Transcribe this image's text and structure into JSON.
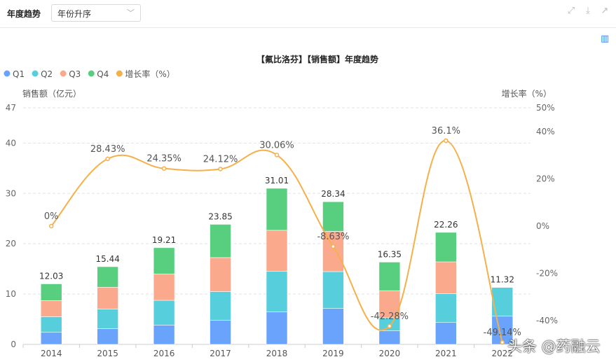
{
  "toolbar": {
    "label": "年度趋势",
    "sort_select": "年份升序",
    "icons": [
      "fullscreen-icon",
      "download-icon",
      "export-icon"
    ]
  },
  "chart_type_icon": "bar-chart-icon",
  "watermark": "头条 @药融云",
  "chart_data": {
    "type": "bar",
    "title": "【氟比洛芬】【销售额】年度趋势",
    "categories": [
      "2014",
      "2015",
      "2016",
      "2017",
      "2018",
      "2019",
      "2020",
      "2021",
      "2022"
    ],
    "ylabel": "销售额（亿元）",
    "y2label": "增长率（%）",
    "ylim": [
      0,
      47
    ],
    "yticks": [
      "0",
      "10",
      "20",
      "30",
      "40",
      "47"
    ],
    "y2lim": [
      -50,
      50
    ],
    "y2ticks": [
      "-40%",
      "-20%",
      "0%",
      "20%",
      "40%",
      "50%"
    ],
    "legend_position": "top-left",
    "grid": true,
    "series": [
      {
        "name": "Q1",
        "type": "bar",
        "stack": "total",
        "color": "#6aa3fb",
        "values": [
          2.4,
          3.15,
          3.85,
          4.77,
          6.44,
          7.14,
          2.69,
          4.35,
          5.6
        ]
      },
      {
        "name": "Q2",
        "type": "bar",
        "stack": "total",
        "color": "#56cedc",
        "values": [
          3.1,
          3.85,
          4.91,
          5.73,
          8.06,
          7.32,
          2.59,
          5.75,
          5.72
        ]
      },
      {
        "name": "Q3",
        "type": "bar",
        "stack": "total",
        "color": "#fba98d",
        "values": [
          3.2,
          4.36,
          5.24,
          6.75,
          8.17,
          8.0,
          5.39,
          6.3,
          0
        ]
      },
      {
        "name": "Q4",
        "type": "bar",
        "stack": "total",
        "color": "#57cf7f",
        "values": [
          3.33,
          4.08,
          5.21,
          6.6,
          8.34,
          5.88,
          5.68,
          5.86,
          0
        ]
      },
      {
        "name": "增长率（%）",
        "type": "line",
        "axis": "right",
        "color": "#f5b04b",
        "values": [
          0,
          28.43,
          24.35,
          24.12,
          30.06,
          -8.63,
          -42.28,
          36.1,
          -49.14
        ]
      }
    ],
    "totals": [
      "12.03",
      "15.44",
      "19.21",
      "23.85",
      "31.01",
      "28.34",
      "16.35",
      "22.26",
      "11.32"
    ],
    "growth_labels": [
      "0%",
      "28.43%",
      "24.35%",
      "24.12%",
      "30.06%",
      "-8.63%",
      "-42.28%",
      "36.1%",
      "-49.14%"
    ]
  }
}
